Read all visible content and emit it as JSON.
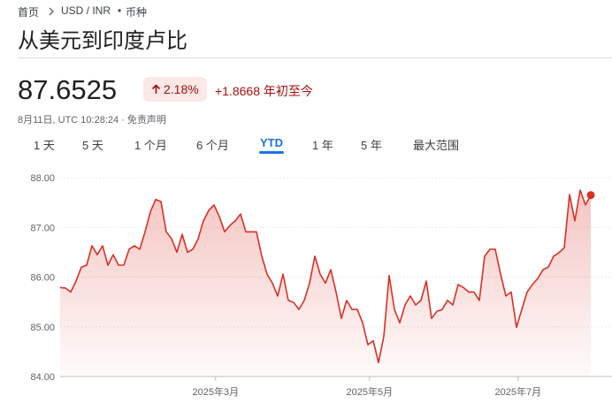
{
  "breadcrumb": {
    "home": "首页",
    "pair": "USD / INR",
    "kind": "币种"
  },
  "title": "从美元到印度卢比",
  "quote": {
    "price": "87.6525",
    "change_percent": "2.18%",
    "change": "+1.8668",
    "period": "年初至今",
    "timestamp": "8月11日, UTC 10:28:24",
    "disclaimer": "免责声明"
  },
  "tabs": [
    "1 天",
    "5 天",
    "1 个月",
    "6 个月",
    "YTD",
    "1 年",
    "5 年",
    "最大范围"
  ],
  "selected_tab": "YTD",
  "chart_data": {
    "type": "line",
    "color": "#d93025",
    "values": [
      85.79,
      85.78,
      85.7,
      85.92,
      86.2,
      86.24,
      86.63,
      86.45,
      86.63,
      86.24,
      86.45,
      86.24,
      86.24,
      86.56,
      86.63,
      86.56,
      86.91,
      87.31,
      87.56,
      87.52,
      86.91,
      86.77,
      86.5,
      86.86,
      86.5,
      86.56,
      86.77,
      87.13,
      87.34,
      87.45,
      87.22,
      86.91,
      87.04,
      87.13,
      87.27,
      86.91,
      86.91,
      86.91,
      86.42,
      86.06,
      85.88,
      85.62,
      86.06,
      85.53,
      85.49,
      85.35,
      85.53,
      85.88,
      86.42,
      86.06,
      85.88,
      86.15,
      85.7,
      85.17,
      85.53,
      85.35,
      85.35,
      85.08,
      84.64,
      84.72,
      84.28,
      84.81,
      86.03,
      85.35,
      85.08,
      85.44,
      85.62,
      85.44,
      85.53,
      85.92,
      85.17,
      85.31,
      85.35,
      85.53,
      85.44,
      85.85,
      85.79,
      85.7,
      85.7,
      85.53,
      86.42,
      86.56,
      86.56,
      86.06,
      85.62,
      85.7,
      84.99,
      85.35,
      85.7,
      85.85,
      85.97,
      86.15,
      86.2,
      86.42,
      86.49,
      86.59,
      87.66,
      87.13,
      87.75,
      87.45,
      87.65
    ],
    "ylim": [
      84,
      88
    ],
    "yticks": [
      {
        "value": 88,
        "label": "88.00"
      },
      {
        "value": 87,
        "label": "87.00"
      },
      {
        "value": 86,
        "label": "86.00"
      },
      {
        "value": 85,
        "label": "85.00"
      },
      {
        "value": 84,
        "label": "84.00"
      }
    ],
    "xlim": [
      0,
      100
    ],
    "xticks": [
      {
        "value": 29.3,
        "label": "2025年3月"
      },
      {
        "value": 58.3,
        "label": "2025年5月"
      },
      {
        "value": 86.3,
        "label": "2025年7月"
      }
    ],
    "grid": true
  }
}
